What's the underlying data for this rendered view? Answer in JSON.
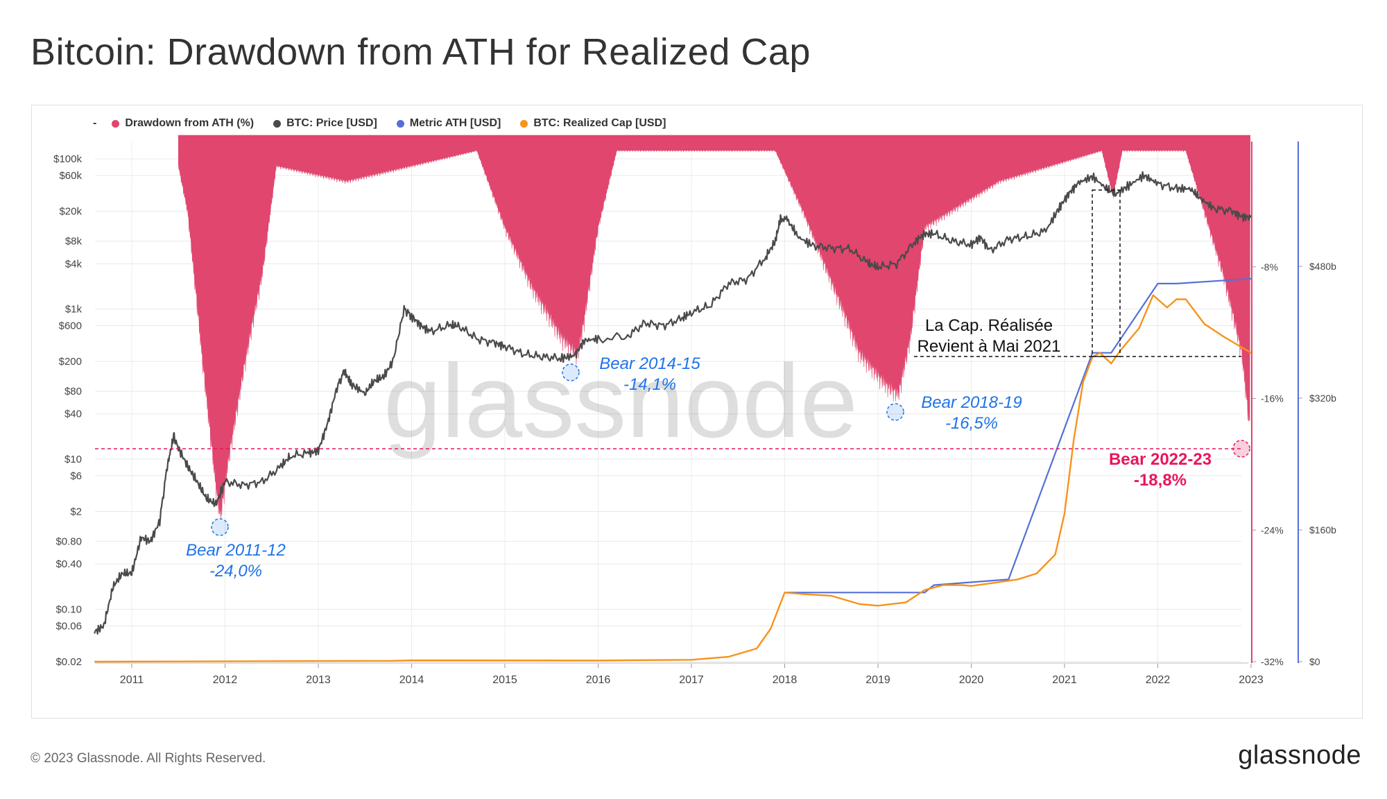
{
  "title": "Bitcoin: Drawdown from ATH for Realized Cap",
  "legend": [
    {
      "label": "-",
      "color": ""
    },
    {
      "label": "Drawdown from ATH (%)",
      "color": "#e0466e"
    },
    {
      "label": "BTC: Price [USD]",
      "color": "#4a4a4a"
    },
    {
      "label": "Metric ATH [USD]",
      "color": "#5470d6"
    },
    {
      "label": "BTC: Realized Cap [USD]",
      "color": "#f7931a"
    }
  ],
  "footer": "© 2023 Glassnode. All Rights Reserved.",
  "brand": "glassnode",
  "watermark": "glassnode",
  "chart_data": {
    "type": "line",
    "x_ticks": [
      "2011",
      "2012",
      "2013",
      "2014",
      "2015",
      "2016",
      "2017",
      "2018",
      "2019",
      "2020",
      "2021",
      "2022",
      "2023"
    ],
    "y_left_ticks": [
      "$100k",
      "$60k",
      "$20k",
      "$8k",
      "$4k",
      "$1k",
      "$600",
      "$200",
      "$80",
      "$40",
      "$10",
      "$6",
      "$2",
      "$0.80",
      "$0.40",
      "$0.10",
      "$0.06",
      "$0.02"
    ],
    "y_left_scale": "log",
    "y_right1_ticks": [
      "-8%",
      "-16%",
      "-24%",
      "-32%"
    ],
    "y_right2_ticks": [
      "$480b",
      "$320b",
      "$160b",
      "$0"
    ],
    "drawdown_range": [
      -32,
      0
    ],
    "realized_cap_range_b": [
      0,
      480
    ],
    "grid": true,
    "series": [
      {
        "name": "BTC: Price [USD]",
        "x": [
          2010.6,
          2010.7,
          2010.8,
          2010.9,
          2011.0,
          2011.1,
          2011.2,
          2011.3,
          2011.38,
          2011.45,
          2011.5,
          2011.6,
          2011.7,
          2011.8,
          2011.9,
          2011.95,
          2012.0,
          2012.2,
          2012.4,
          2012.6,
          2012.7,
          2012.9,
          2013.0,
          2013.1,
          2013.2,
          2013.28,
          2013.35,
          2013.5,
          2013.6,
          2013.7,
          2013.8,
          2013.92,
          2014.0,
          2014.1,
          2014.2,
          2014.4,
          2014.5,
          2014.7,
          2014.9,
          2015.0,
          2015.2,
          2015.4,
          2015.6,
          2015.75,
          2015.85,
          2016.0,
          2016.3,
          2016.5,
          2016.7,
          2016.9,
          2017.0,
          2017.2,
          2017.4,
          2017.6,
          2017.8,
          2017.9,
          2017.96,
          2018.05,
          2018.15,
          2018.3,
          2018.5,
          2018.7,
          2018.9,
          2019.0,
          2019.2,
          2019.4,
          2019.5,
          2019.6,
          2019.8,
          2020.0,
          2020.1,
          2020.2,
          2020.4,
          2020.6,
          2020.8,
          2020.95,
          2021.05,
          2021.15,
          2021.3,
          2021.45,
          2021.55,
          2021.7,
          2021.85,
          2022.0,
          2022.2,
          2022.35,
          2022.45,
          2022.6,
          2022.8,
          2022.9,
          2023.0
        ],
        "values": [
          0.05,
          0.06,
          0.2,
          0.3,
          0.3,
          0.9,
          0.8,
          1.5,
          8,
          20,
          14,
          8,
          5,
          3,
          2.5,
          3.5,
          5,
          4.5,
          5,
          8,
          11,
          12,
          13,
          30,
          90,
          150,
          100,
          75,
          110,
          125,
          200,
          1000,
          800,
          600,
          500,
          600,
          600,
          400,
          350,
          320,
          250,
          230,
          220,
          240,
          380,
          400,
          420,
          650,
          600,
          750,
          900,
          1100,
          2200,
          2500,
          5000,
          8000,
          17000,
          14000,
          9000,
          7000,
          6500,
          6300,
          4000,
          3600,
          4000,
          8000,
          10000,
          10000,
          8000,
          7200,
          9000,
          6000,
          8500,
          9200,
          11000,
          23000,
          35000,
          48000,
          58000,
          40000,
          34000,
          45000,
          60000,
          47000,
          40000,
          40000,
          30000,
          22000,
          20000,
          17000,
          16500
        ]
      },
      {
        "name": "BTC: Realized Cap [USD]",
        "x": [
          2010.6,
          2013.8,
          2014.0,
          2016.0,
          2017.0,
          2017.4,
          2017.7,
          2017.85,
          2018.0,
          2018.2,
          2018.5,
          2018.8,
          2019.0,
          2019.3,
          2019.5,
          2019.7,
          2019.9,
          2020.0,
          2020.2,
          2020.5,
          2020.7,
          2020.9,
          2021.0,
          2021.1,
          2021.2,
          2021.3,
          2021.38,
          2021.5,
          2021.6,
          2021.8,
          2021.95,
          2022.1,
          2022.2,
          2022.3,
          2022.4,
          2022.5,
          2022.7,
          2022.85,
          2023.0
        ],
        "values_b": [
          0,
          1,
          1.6,
          1.4,
          2.3,
          6,
          16,
          40,
          84,
          82,
          80,
          70,
          68,
          72,
          87,
          93,
          93,
          92,
          95,
          100,
          107,
          130,
          180,
          270,
          340,
          370,
          375,
          362,
          378,
          405,
          445,
          430,
          440,
          440,
          425,
          410,
          395,
          385,
          375
        ]
      },
      {
        "name": "Metric ATH [USD]",
        "x": [
          2018.0,
          2019.5,
          2019.6,
          2020.4,
          2021.3,
          2021.5,
          2022.0,
          2022.2,
          2023.0
        ],
        "values_b": [
          84,
          84,
          93,
          100,
          375,
          375,
          459,
          459,
          465
        ]
      },
      {
        "name": "Drawdown from ATH (%)",
        "x": [
          2011.5,
          2011.6,
          2011.75,
          2011.9,
          2011.95,
          2012.05,
          2012.2,
          2012.4,
          2012.55,
          2013.3,
          2014.7,
          2015.0,
          2015.3,
          2015.6,
          2015.78,
          2015.85,
          2016.0,
          2016.2,
          2017.9,
          2018.2,
          2018.4,
          2018.6,
          2018.8,
          2019.1,
          2019.22,
          2019.35,
          2019.5,
          2020.3,
          2021.4,
          2021.52,
          2021.62,
          2022.3,
          2022.5,
          2022.7,
          2022.9,
          2022.99
        ],
        "values": [
          -2,
          -5,
          -14,
          -22,
          -24,
          -20,
          -15,
          -9,
          -2,
          -3,
          -1,
          -6,
          -10,
          -13,
          -14.1,
          -12,
          -6,
          -1,
          -1,
          -5,
          -8,
          -11,
          -14,
          -16,
          -16.5,
          -13,
          -6,
          -3,
          -1,
          -4,
          -1,
          -1,
          -5,
          -9,
          -14,
          -18.8
        ]
      }
    ],
    "annotations": [
      {
        "label": "Bear 2011-12",
        "value": "-24,0%"
      },
      {
        "label": "Bear 2014-15",
        "value": "-14,1%"
      },
      {
        "label": "Bear 2018-19",
        "value": "-16,5%"
      },
      {
        "label": "Bear 2022-23",
        "value": "-18,8%"
      },
      {
        "line1": "La Cap. Réalisée",
        "line2": "Revient à Mai 2021"
      }
    ]
  }
}
